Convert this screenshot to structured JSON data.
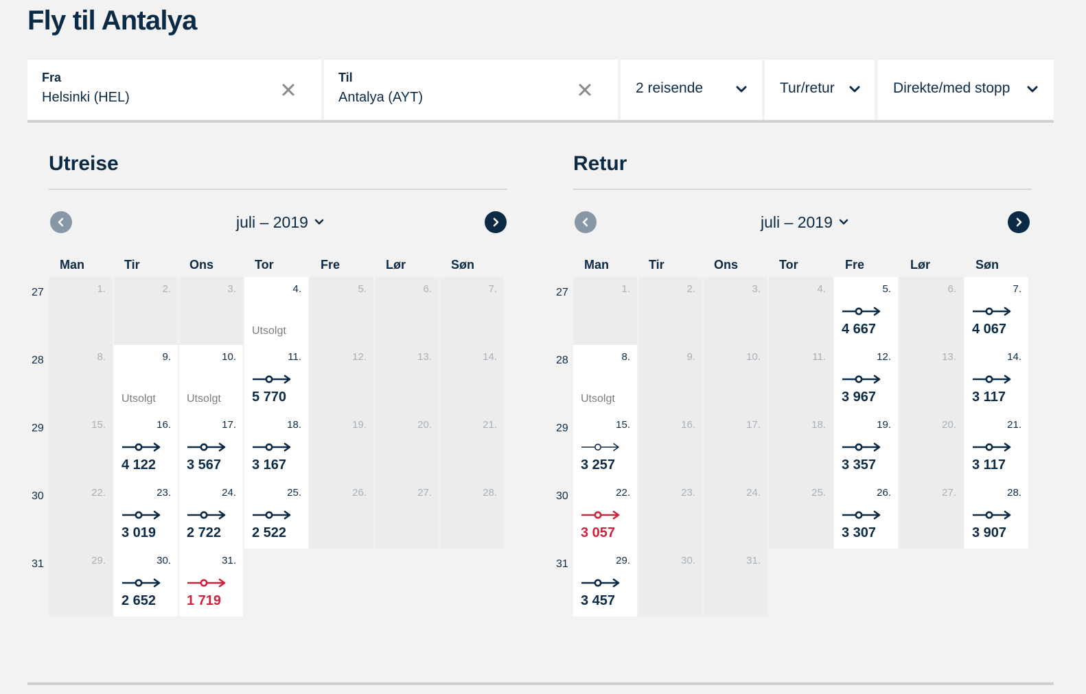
{
  "title": "Fly til Antalya",
  "search": {
    "from": {
      "label": "Fra",
      "value": "Helsinki (HEL)"
    },
    "to": {
      "label": "Til",
      "value": "Antalya (AYT)"
    },
    "travelers": "2 reisende",
    "trip_type": "Tur/retur",
    "stops": "Direkte/med stopp"
  },
  "weekdays": [
    "Man",
    "Tir",
    "Ons",
    "Tor",
    "Fre",
    "Lør",
    "Søn"
  ],
  "colors": {
    "brand": "#0b2a45",
    "cheapest": "#d0213b",
    "nav_disabled": "#8797a6"
  },
  "calendars": [
    {
      "id": "outbound",
      "title": "Utreise",
      "month_label": "juli – 2019",
      "week_numbers": [
        "27",
        "28",
        "29",
        "30",
        "31"
      ],
      "weeks": [
        [
          {
            "d": "1."
          },
          {
            "d": "2."
          },
          {
            "d": "3."
          },
          {
            "d": "4.",
            "status": "Utsolgt"
          },
          {
            "d": "5."
          },
          {
            "d": "6."
          },
          {
            "d": "7."
          }
        ],
        [
          {
            "d": "8."
          },
          {
            "d": "9.",
            "status": "Utsolgt"
          },
          {
            "d": "10.",
            "status": "Utsolgt"
          },
          {
            "d": "11.",
            "price": "5 770"
          },
          {
            "d": "12."
          },
          {
            "d": "13."
          },
          {
            "d": "14."
          }
        ],
        [
          {
            "d": "15."
          },
          {
            "d": "16.",
            "price": "4 122"
          },
          {
            "d": "17.",
            "price": "3 567"
          },
          {
            "d": "18.",
            "price": "3 167"
          },
          {
            "d": "19."
          },
          {
            "d": "20."
          },
          {
            "d": "21."
          }
        ],
        [
          {
            "d": "22."
          },
          {
            "d": "23.",
            "price": "3 019"
          },
          {
            "d": "24.",
            "price": "2 722"
          },
          {
            "d": "25.",
            "price": "2 522"
          },
          {
            "d": "26."
          },
          {
            "d": "27."
          },
          {
            "d": "28."
          }
        ],
        [
          {
            "d": "29."
          },
          {
            "d": "30.",
            "price": "2 652"
          },
          {
            "d": "31.",
            "price": "1 719",
            "cheapest": true
          }
        ]
      ]
    },
    {
      "id": "return",
      "title": "Retur",
      "month_label": "juli – 2019",
      "week_numbers": [
        "27",
        "28",
        "29",
        "30",
        "31"
      ],
      "weeks": [
        [
          {
            "d": "1."
          },
          {
            "d": "2."
          },
          {
            "d": "3."
          },
          {
            "d": "4."
          },
          {
            "d": "5.",
            "price": "4 667"
          },
          {
            "d": "6."
          },
          {
            "d": "7.",
            "price": "4 067"
          }
        ],
        [
          {
            "d": "8.",
            "status": "Utsolgt"
          },
          {
            "d": "9."
          },
          {
            "d": "10."
          },
          {
            "d": "11."
          },
          {
            "d": "12.",
            "price": "3 967"
          },
          {
            "d": "13."
          },
          {
            "d": "14.",
            "price": "3 117"
          }
        ],
        [
          {
            "d": "15.",
            "price": "3 257",
            "thin": true
          },
          {
            "d": "16."
          },
          {
            "d": "17."
          },
          {
            "d": "18."
          },
          {
            "d": "19.",
            "price": "3 357"
          },
          {
            "d": "20."
          },
          {
            "d": "21.",
            "price": "3 117"
          }
        ],
        [
          {
            "d": "22.",
            "price": "3 057",
            "cheapest": true
          },
          {
            "d": "23."
          },
          {
            "d": "24."
          },
          {
            "d": "25."
          },
          {
            "d": "26.",
            "price": "3 307"
          },
          {
            "d": "27."
          },
          {
            "d": "28.",
            "price": "3 907"
          }
        ],
        [
          {
            "d": "29.",
            "price": "3 457"
          },
          {
            "d": "30."
          },
          {
            "d": "31."
          }
        ]
      ]
    }
  ]
}
